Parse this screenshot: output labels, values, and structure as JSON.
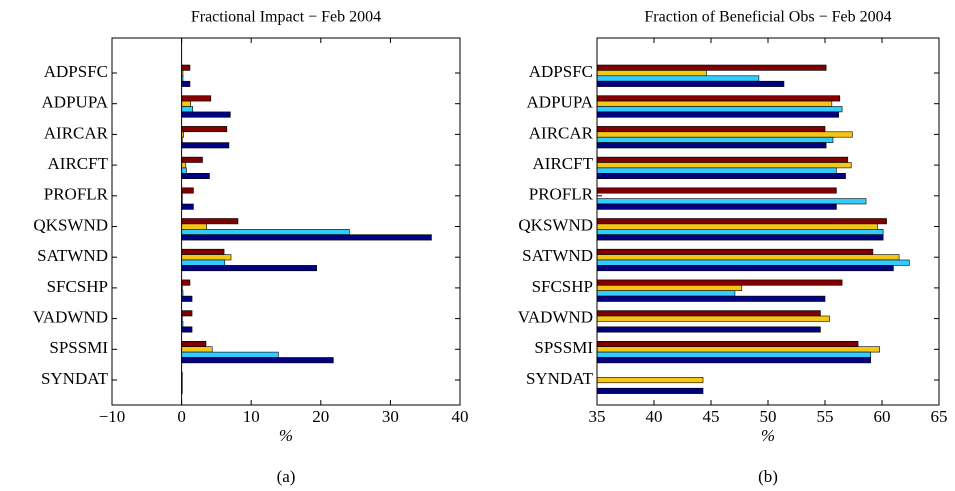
{
  "chart_data": [
    {
      "type": "hbar",
      "title": "Fractional Impact − Feb 2004",
      "xlabel": "%",
      "caption": "(a)",
      "categories": [
        "ADPSFC",
        "ADPUPA",
        "AIRCAR",
        "AIRCFT",
        "PROFLR",
        "QKSWND",
        "SATWND",
        "SFCSHP",
        "VADWND",
        "SPSSMI",
        "SYNDAT"
      ],
      "series": [
        {
          "color": "#800000",
          "values": [
            1.2,
            4.2,
            6.5,
            3.0,
            1.7,
            8.1,
            6.1,
            1.2,
            1.5,
            3.5,
            0.1
          ]
        },
        {
          "color": "#f5c518",
          "values": [
            0.2,
            1.3,
            0.3,
            0.6,
            0.1,
            3.6,
            7.1,
            0.1,
            0.1,
            4.4,
            0.1
          ]
        },
        {
          "color": "#33ccff",
          "values": [
            0.2,
            1.6,
            0.1,
            0.7,
            0.1,
            24.1,
            6.2,
            0.2,
            0.2,
            13.9,
            0.1
          ]
        },
        {
          "color": "#000080",
          "values": [
            1.2,
            7.0,
            6.8,
            4.0,
            1.7,
            35.9,
            19.4,
            1.5,
            1.5,
            21.8,
            0.1
          ]
        }
      ],
      "xlim": [
        -10,
        40
      ],
      "xticks": [
        {
          "value": -10,
          "label": "−10"
        },
        0,
        10,
        20,
        30,
        40
      ],
      "zero_line": true
    },
    {
      "type": "hbar",
      "title": "Fraction of Beneficial Obs − Feb 2004",
      "xlabel": "%",
      "caption": "(b)",
      "categories": [
        "ADPSFC",
        "ADPUPA",
        "AIRCAR",
        "AIRCFT",
        "PROFLR",
        "QKSWND",
        "SATWND",
        "SFCSHP",
        "VADWND",
        "SPSSMI",
        "SYNDAT"
      ],
      "series": [
        {
          "color": "#800000",
          "values": [
            55.1,
            56.3,
            55.0,
            57.0,
            56.0,
            60.4,
            59.2,
            56.5,
            54.6,
            57.9,
            null
          ]
        },
        {
          "color": "#f5c518",
          "values": [
            44.6,
            55.6,
            57.4,
            57.3,
            null,
            59.6,
            61.5,
            47.7,
            55.4,
            59.8,
            44.3
          ]
        },
        {
          "color": "#33ccff",
          "values": [
            49.2,
            56.5,
            55.7,
            56.0,
            58.6,
            60.1,
            62.4,
            47.1,
            null,
            59.0,
            null
          ]
        },
        {
          "color": "#000080",
          "values": [
            51.4,
            56.2,
            55.1,
            56.8,
            56.0,
            60.1,
            61.0,
            55.0,
            54.6,
            59.0,
            44.3
          ]
        }
      ],
      "xlim": [
        35,
        65
      ],
      "xticks": [
        35,
        40,
        45,
        50,
        55,
        60,
        65
      ],
      "zero_line": false
    }
  ]
}
